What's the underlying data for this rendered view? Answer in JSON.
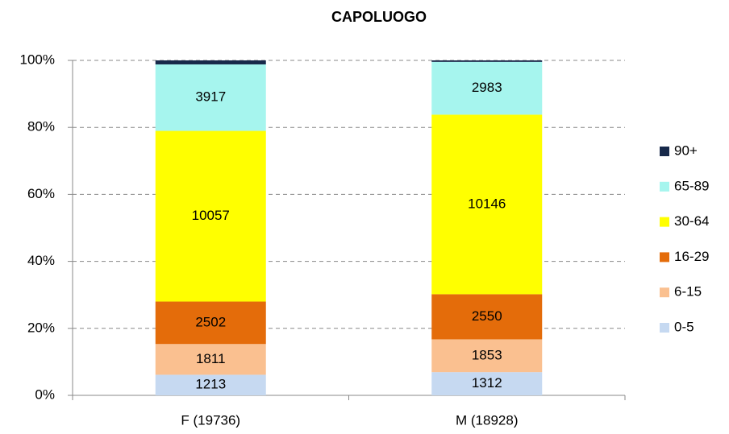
{
  "chart_data": {
    "type": "bar",
    "stacking": "percent",
    "title": "CAPOLUOGO",
    "categories": [
      "F (19736)",
      "M (18928)"
    ],
    "series": [
      {
        "name": "0-5",
        "color": "#c6d9f1",
        "values": [
          1213,
          1312
        ]
      },
      {
        "name": "6-15",
        "color": "#fac090",
        "values": [
          1811,
          1853
        ]
      },
      {
        "name": "16-29",
        "color": "#e46c0a",
        "values": [
          2502,
          2550
        ]
      },
      {
        "name": "30-64",
        "color": "#ffff00",
        "values": [
          10057,
          10146
        ]
      },
      {
        "name": "65-89",
        "color": "#a6f5ee",
        "values": [
          3917,
          2983
        ]
      },
      {
        "name": "90+",
        "color": "#17294a",
        "values": [
          236,
          84
        ]
      }
    ],
    "ylim": [
      0,
      100
    ],
    "yticks": [
      {
        "value": 0,
        "label": "0%"
      },
      {
        "value": 20,
        "label": "20%"
      },
      {
        "value": 40,
        "label": "40%"
      },
      {
        "value": 60,
        "label": "60%"
      },
      {
        "value": 80,
        "label": "80%"
      },
      {
        "value": 100,
        "label": "100%"
      }
    ],
    "grid": true,
    "legend": "right"
  }
}
